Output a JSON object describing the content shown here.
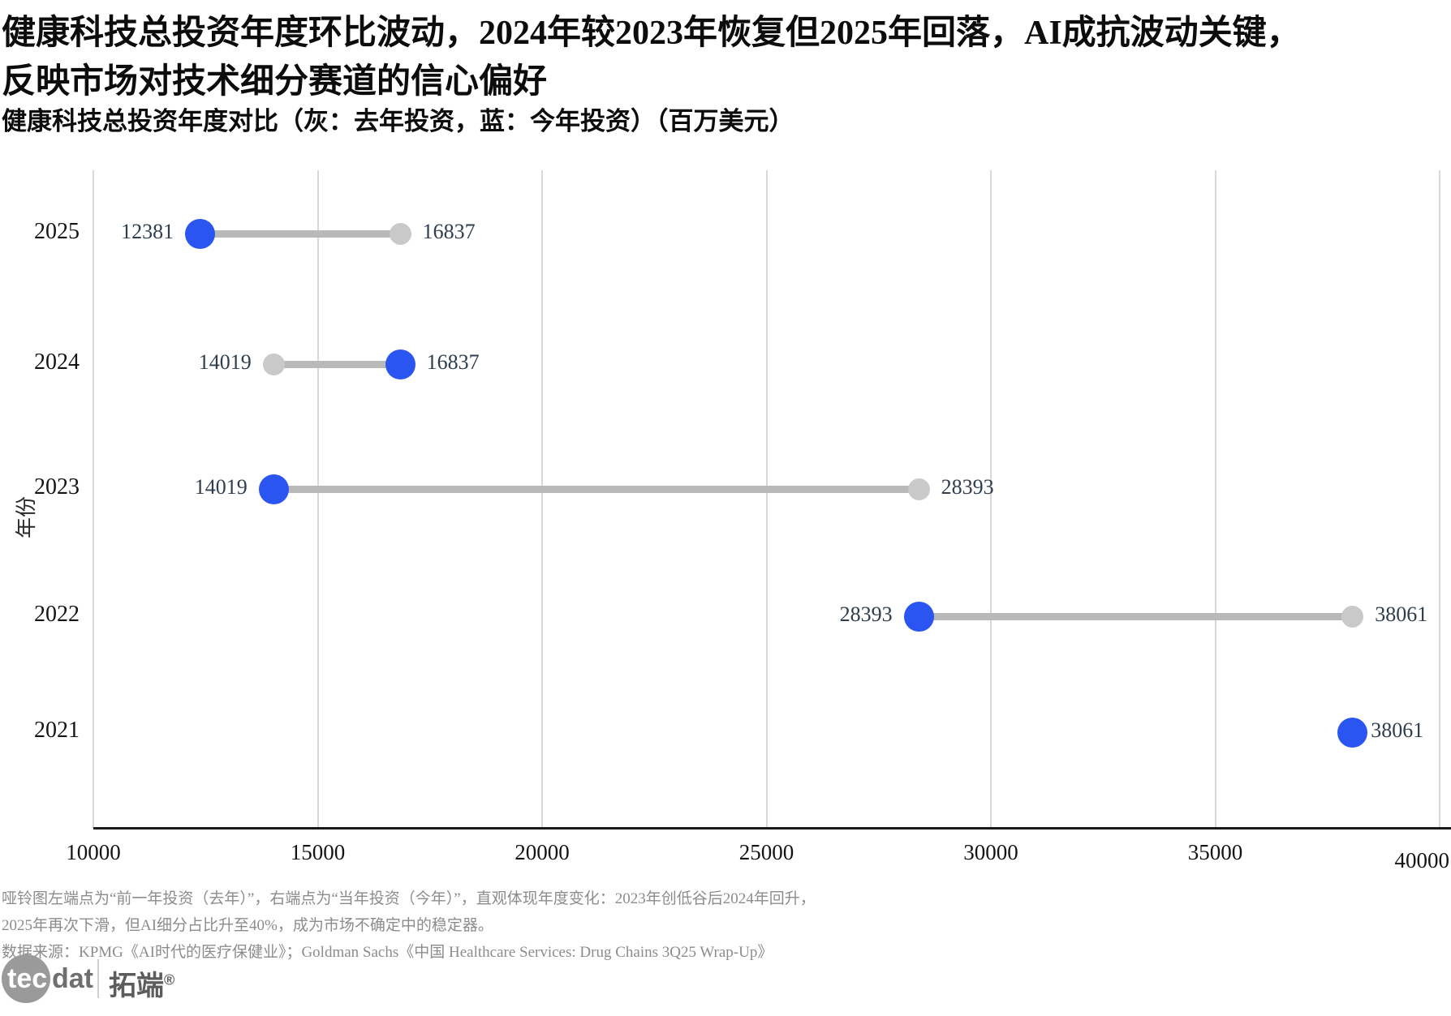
{
  "title_line1": "健康科技总投资年度环比波动，2024年较2023年恢复但2025年回落，AI成抗波动关键，",
  "title_line2": "反映市场对技术细分赛道的信心偏好",
  "subtitle": "健康科技总投资年度对比（灰：去年投资，蓝：今年投资）（百万美元）",
  "colors": {
    "current_year_dot": "#2b55f0",
    "previous_year_dot": "#c9c9c9",
    "connector": "#b9b9b9",
    "gridline": "#d8d8d8",
    "axis_line": "#1a1a1a",
    "value_label": "#2e3d4f",
    "footnote": "#8c8c8c"
  },
  "chart_data": {
    "type": "dumbbell",
    "title": "健康科技总投资年度对比（灰：去年投资，蓝：今年投资）（百万美元）",
    "xlabel": "",
    "ylabel": "年份",
    "categories": [
      "2025",
      "2024",
      "2023",
      "2022",
      "2021"
    ],
    "series": [
      {
        "name": "去年投资（灰）",
        "values": [
          16837,
          14019,
          28393,
          38061,
          null
        ]
      },
      {
        "name": "今年投资（蓝）",
        "values": [
          12381,
          16837,
          14019,
          28393,
          38061
        ]
      }
    ],
    "xlim": [
      10000,
      40000
    ],
    "x_ticks": [
      10000,
      15000,
      20000,
      25000,
      30000,
      35000,
      40000
    ],
    "grid": true,
    "legend_position": "none"
  },
  "footnotes": [
    "哑铃图左端点为“前一年投资（去年）”，右端点为“当年投资（今年）”，直观体现年度变化：2023年创低谷后2024年回升，",
    "2025年再次下滑，但AI细分占比升至40%，成为市场不确定中的稳定器。",
    "数据来源：KPMG《AI时代的医疗保健业》；Goldman Sachs《中国 Healthcare Services: Drug Chains 3Q25 Wrap-Up》"
  ],
  "logo": {
    "text_white": "tec",
    "text_gray": "dat",
    "text_cn": "拓端",
    "reg_mark": "®"
  }
}
